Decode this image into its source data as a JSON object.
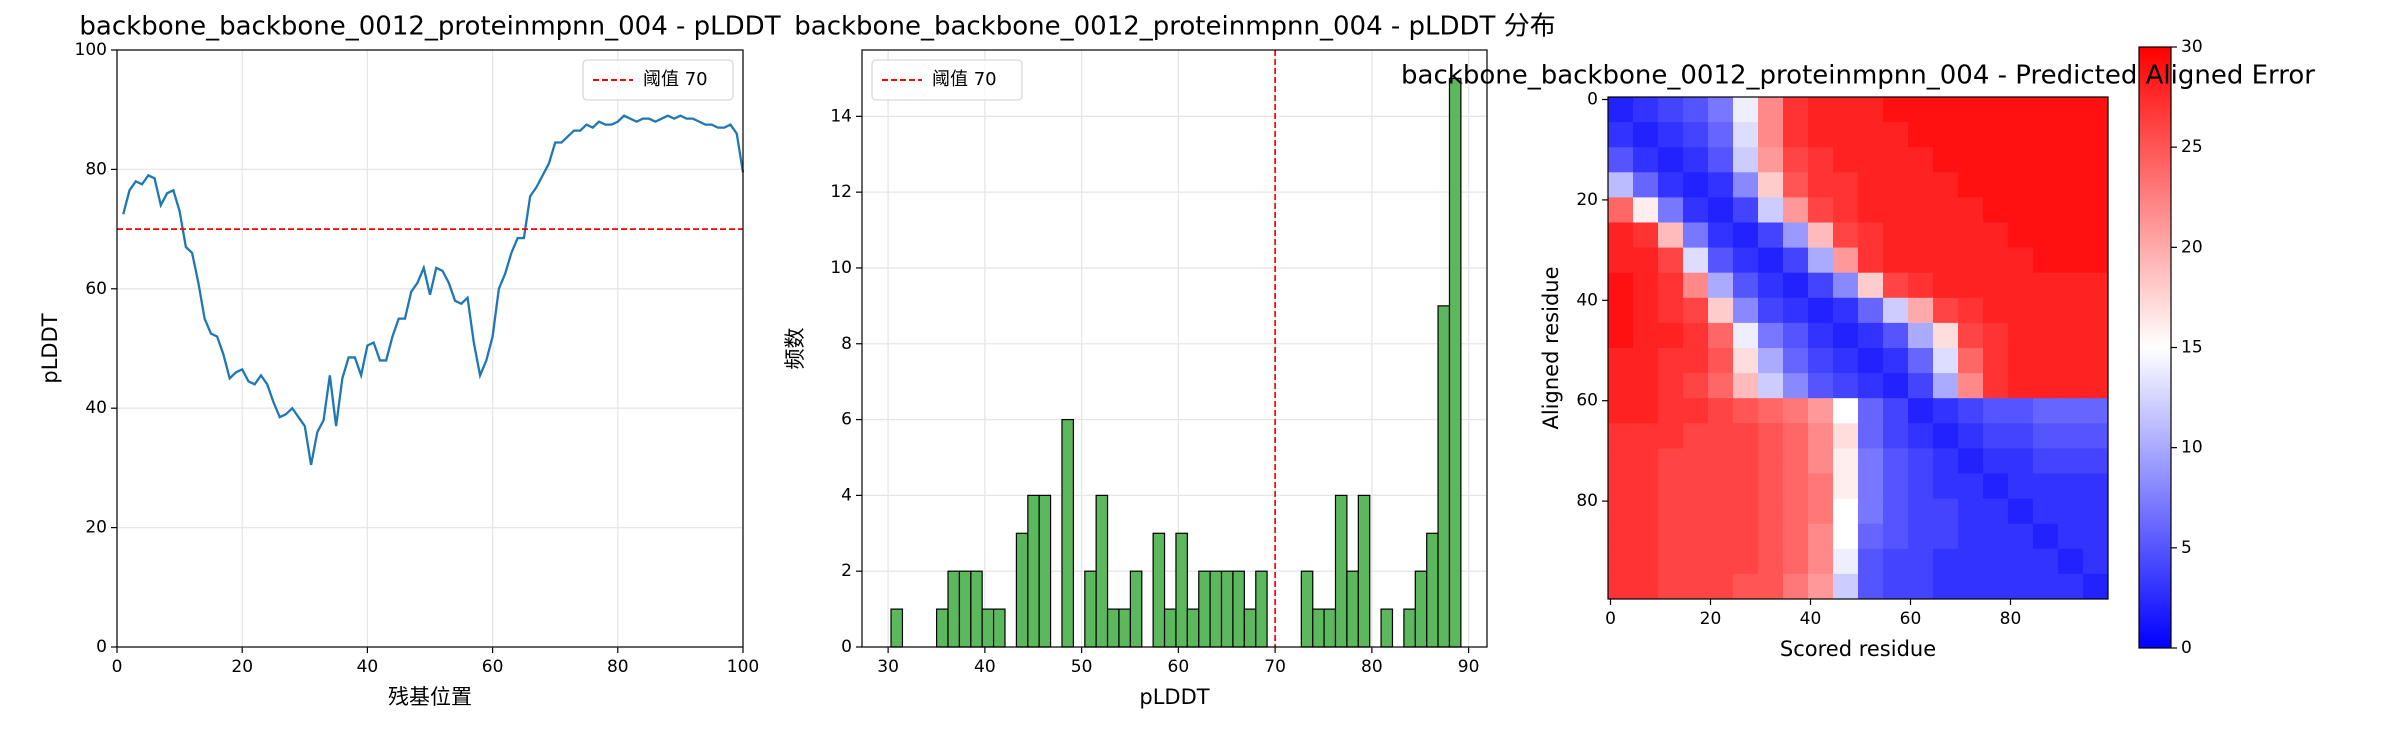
{
  "chart_data": [
    {
      "type": "line",
      "title": "backbone_backbone_0012_proteinmpnn_004 - pLDDT",
      "x_label": "残基位置",
      "y_label": "pLDDT",
      "x": [
        1,
        2,
        3,
        4,
        5,
        6,
        7,
        8,
        9,
        10,
        11,
        12,
        13,
        14,
        15,
        16,
        17,
        18,
        19,
        20,
        21,
        22,
        23,
        24,
        25,
        26,
        27,
        28,
        29,
        30,
        31,
        32,
        33,
        34,
        35,
        36,
        37,
        38,
        39,
        40,
        41,
        42,
        43,
        44,
        45,
        46,
        47,
        48,
        49,
        50,
        51,
        52,
        53,
        54,
        55,
        56,
        57,
        58,
        59,
        60,
        61,
        62,
        63,
        64,
        65,
        66,
        67,
        68,
        69,
        70,
        71,
        72,
        73,
        74,
        75,
        76,
        77,
        78,
        79,
        80,
        81,
        82,
        83,
        84,
        85,
        86,
        87,
        88,
        89,
        90,
        91,
        92,
        93,
        94,
        95,
        96,
        97,
        98,
        99,
        100
      ],
      "values": [
        72.5,
        76.5,
        78,
        77.5,
        79,
        78.5,
        74,
        76,
        76.5,
        73,
        67,
        66,
        61,
        55,
        52.5,
        52,
        49,
        45,
        46,
        46.5,
        44.5,
        44,
        45.5,
        44,
        41,
        38.5,
        39,
        40,
        38.5,
        37,
        30.5,
        36,
        38,
        45.5,
        37,
        45,
        48.5,
        48.5,
        45.5,
        50.5,
        51,
        48,
        48,
        52,
        55,
        55,
        59.5,
        61,
        63.5,
        59,
        63.5,
        63,
        61,
        58,
        57.5,
        58.5,
        51,
        45.5,
        48,
        52,
        60,
        62.5,
        66,
        68.5,
        68.5,
        75.5,
        77,
        79,
        81,
        84.5,
        84.5,
        85.5,
        86.5,
        86.5,
        87.5,
        87,
        88,
        87.5,
        87.5,
        88,
        89,
        88.5,
        88,
        88.5,
        88.5,
        88,
        88.5,
        89,
        88.5,
        89,
        88.5,
        88.5,
        88,
        87.5,
        87.5,
        87,
        87,
        87.5,
        86,
        79.5
      ],
      "color": "#1f77b4",
      "hline": 70,
      "hline_label": "阈值 70",
      "hline_color": "#ff0000",
      "legend": "upper right",
      "xlim": [
        0,
        100
      ],
      "ylim": [
        0,
        100
      ],
      "xticks": [
        0,
        20,
        40,
        60,
        80,
        100
      ],
      "yticks": [
        0,
        20,
        40,
        60,
        80,
        100
      ],
      "grid": true
    },
    {
      "type": "histogram",
      "title": "backbone_backbone_0012_proteinmpnn_004 - pLDDT 分布",
      "x_label": "pLDDT",
      "y_label": "频数",
      "bins": [
        30.3,
        31.48,
        32.66,
        33.83,
        35.01,
        36.19,
        37.37,
        38.55,
        39.72,
        40.9,
        42.08,
        43.26,
        44.44,
        45.61,
        46.79,
        47.97,
        49.15,
        50.33,
        51.5,
        52.68,
        53.86,
        55.04,
        56.22,
        57.39,
        58.57,
        59.75,
        60.93,
        62.11,
        63.28,
        64.46,
        65.64,
        66.82,
        68.0,
        69.17,
        70.35,
        71.53,
        72.71,
        73.89,
        75.06,
        76.24,
        77.42,
        78.6,
        79.78,
        80.95,
        82.13,
        83.31,
        84.49,
        85.67,
        86.84,
        88.02,
        89.2
      ],
      "counts": [
        1,
        0,
        0,
        0,
        1,
        2,
        2,
        2,
        1,
        1,
        0,
        3,
        4,
        4,
        0,
        6,
        0,
        2,
        4,
        1,
        1,
        2,
        0,
        3,
        1,
        3,
        1,
        2,
        2,
        2,
        2,
        1,
        2,
        0,
        0,
        0,
        2,
        1,
        1,
        4,
        2,
        4,
        0,
        1,
        0,
        1,
        2,
        3,
        9,
        15
      ],
      "color": "#5cb85c",
      "edgecolor": "#000000",
      "vline": 70,
      "hline_label": "阈值 70",
      "vline_color": "#ff0000",
      "legend": "upper left",
      "xlim": [
        27.3,
        91.9
      ],
      "ylim": [
        0,
        15.75
      ],
      "xticks": [
        30,
        40,
        50,
        60,
        70,
        80,
        90
      ],
      "yticks": [
        0,
        2,
        4,
        6,
        8,
        10,
        12,
        14
      ],
      "grid": true
    },
    {
      "type": "heatmap",
      "title": "backbone_backbone_0012_proteinmpnn_004 - Predicted Aligned Error",
      "x_label": "Scored residue",
      "y_label": "Aligned residue",
      "values": [
        [
          2,
          3,
          4,
          5,
          7,
          14,
          22,
          27,
          28,
          28,
          28,
          29,
          29,
          29,
          29,
          29,
          29,
          29,
          29,
          29
        ],
        [
          3,
          2,
          3,
          4,
          6,
          13,
          22,
          27,
          28,
          28,
          28,
          28,
          29,
          29,
          29,
          29,
          29,
          29,
          29,
          29
        ],
        [
          5,
          3,
          2,
          3,
          5,
          12,
          21,
          26,
          27,
          28,
          28,
          28,
          28,
          29,
          29,
          29,
          29,
          29,
          29,
          29
        ],
        [
          11,
          6,
          3,
          2,
          3,
          8,
          18,
          25,
          27,
          27,
          28,
          28,
          28,
          28,
          29,
          29,
          29,
          29,
          29,
          29
        ],
        [
          24,
          16,
          7,
          3,
          2,
          4,
          12,
          21,
          26,
          27,
          28,
          28,
          28,
          28,
          28,
          29,
          29,
          29,
          29,
          29
        ],
        [
          28,
          27,
          19,
          7,
          3,
          2,
          4,
          9,
          19,
          26,
          27,
          28,
          28,
          28,
          28,
          28,
          29,
          29,
          29,
          29
        ],
        [
          28,
          28,
          26,
          13,
          5,
          3,
          2,
          4,
          10,
          21,
          27,
          28,
          28,
          28,
          28,
          28,
          28,
          29,
          29,
          29
        ],
        [
          29,
          28,
          27,
          22,
          10,
          5,
          3,
          2,
          4,
          8,
          18,
          26,
          27,
          28,
          28,
          28,
          28,
          28,
          28,
          28
        ],
        [
          29,
          28,
          27,
          26,
          18,
          8,
          4,
          3,
          2,
          3,
          6,
          12,
          20,
          26,
          27,
          28,
          28,
          28,
          28,
          28
        ],
        [
          29,
          28,
          28,
          27,
          24,
          14,
          7,
          5,
          3,
          2,
          3,
          5,
          10,
          17,
          26,
          27,
          28,
          28,
          28,
          28
        ],
        [
          28,
          28,
          27,
          27,
          25,
          17,
          10,
          6,
          4,
          3,
          2,
          3,
          6,
          13,
          24,
          27,
          28,
          28,
          28,
          28
        ],
        [
          28,
          28,
          27,
          26,
          24,
          19,
          12,
          8,
          5,
          4,
          3,
          2,
          4,
          10,
          22,
          27,
          28,
          28,
          28,
          28
        ],
        [
          28,
          28,
          27,
          27,
          26,
          25,
          24,
          23,
          21,
          15,
          6,
          4,
          2,
          3,
          4,
          5,
          5,
          6,
          6,
          6
        ],
        [
          27,
          27,
          27,
          26,
          26,
          26,
          25,
          24,
          22,
          17,
          6,
          4,
          3,
          2,
          3,
          4,
          4,
          5,
          5,
          5
        ],
        [
          27,
          27,
          26,
          26,
          26,
          26,
          25,
          24,
          22,
          16,
          7,
          5,
          4,
          3,
          2,
          3,
          3,
          4,
          4,
          4
        ],
        [
          27,
          27,
          26,
          26,
          26,
          26,
          25,
          24,
          23,
          16,
          7,
          5,
          4,
          3,
          3,
          2,
          3,
          3,
          3,
          3
        ],
        [
          27,
          27,
          26,
          26,
          26,
          26,
          25,
          24,
          23,
          15,
          7,
          5,
          4,
          4,
          3,
          3,
          2,
          3,
          3,
          3
        ],
        [
          27,
          27,
          26,
          26,
          26,
          26,
          25,
          24,
          22,
          15,
          6,
          5,
          4,
          4,
          3,
          3,
          3,
          2,
          3,
          3
        ],
        [
          27,
          27,
          26,
          26,
          26,
          26,
          25,
          24,
          22,
          14,
          5,
          4,
          4,
          3,
          3,
          3,
          3,
          3,
          2,
          3
        ],
        [
          27,
          27,
          26,
          26,
          26,
          25,
          25,
          23,
          21,
          12,
          5,
          4,
          4,
          3,
          3,
          3,
          3,
          3,
          3,
          2
        ]
      ],
      "colormap": "bwr",
      "clim": [
        0,
        30
      ],
      "cticks": [
        0,
        5,
        10,
        15,
        20,
        25,
        30
      ],
      "xlim": [
        -0.5,
        99.5
      ],
      "ylim": [
        99.5,
        -0.5
      ],
      "xticks": [
        0,
        20,
        40,
        60,
        80
      ],
      "yticks": [
        0,
        20,
        40,
        60,
        80
      ],
      "grid": false
    }
  ]
}
